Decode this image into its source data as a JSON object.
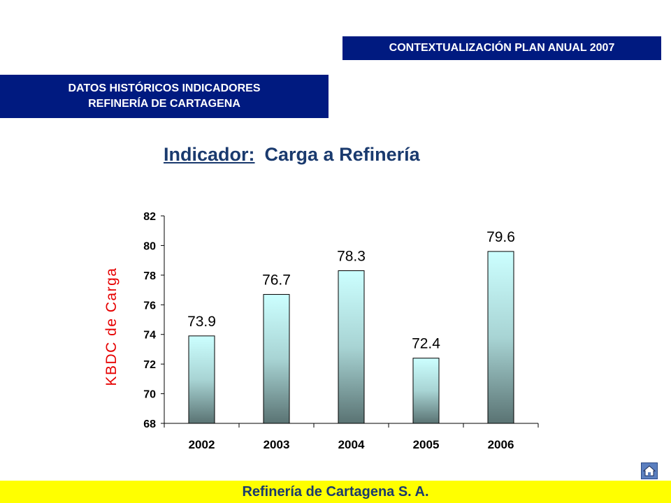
{
  "header": {
    "plan_label": "CONTEXTUALIZACIÓN PLAN ANUAL 2007",
    "section_line1": "DATOS HISTÓRICOS INDICADORES",
    "section_line2": "REFINERÍA DE CARTAGENA"
  },
  "title": {
    "prefix": "Indicador:",
    "name": "Carga a Refinería"
  },
  "footer": {
    "company": "Refinería de Cartagena S. A."
  },
  "nav": {
    "home_icon": "home-icon"
  },
  "colors": {
    "banner": "#001a80",
    "footer": "#ffff00",
    "ylabel": "#e60000",
    "bar_top": "#ccffff",
    "bar_bottom": "#5a7373"
  },
  "chart_data": {
    "type": "bar",
    "categories": [
      "2002",
      "2003",
      "2004",
      "2005",
      "2006"
    ],
    "values": [
      73.9,
      76.7,
      78.3,
      72.4,
      79.6
    ],
    "data_labels": [
      "73.9",
      "76.7",
      "78.3",
      "72.4",
      "79.6"
    ],
    "ylabel": "KBDC de Carga",
    "xlabel": "",
    "ylim": [
      68,
      82
    ],
    "yticks": [
      68,
      70,
      72,
      74,
      76,
      78,
      80,
      82
    ],
    "grid": false,
    "legend": "none"
  }
}
